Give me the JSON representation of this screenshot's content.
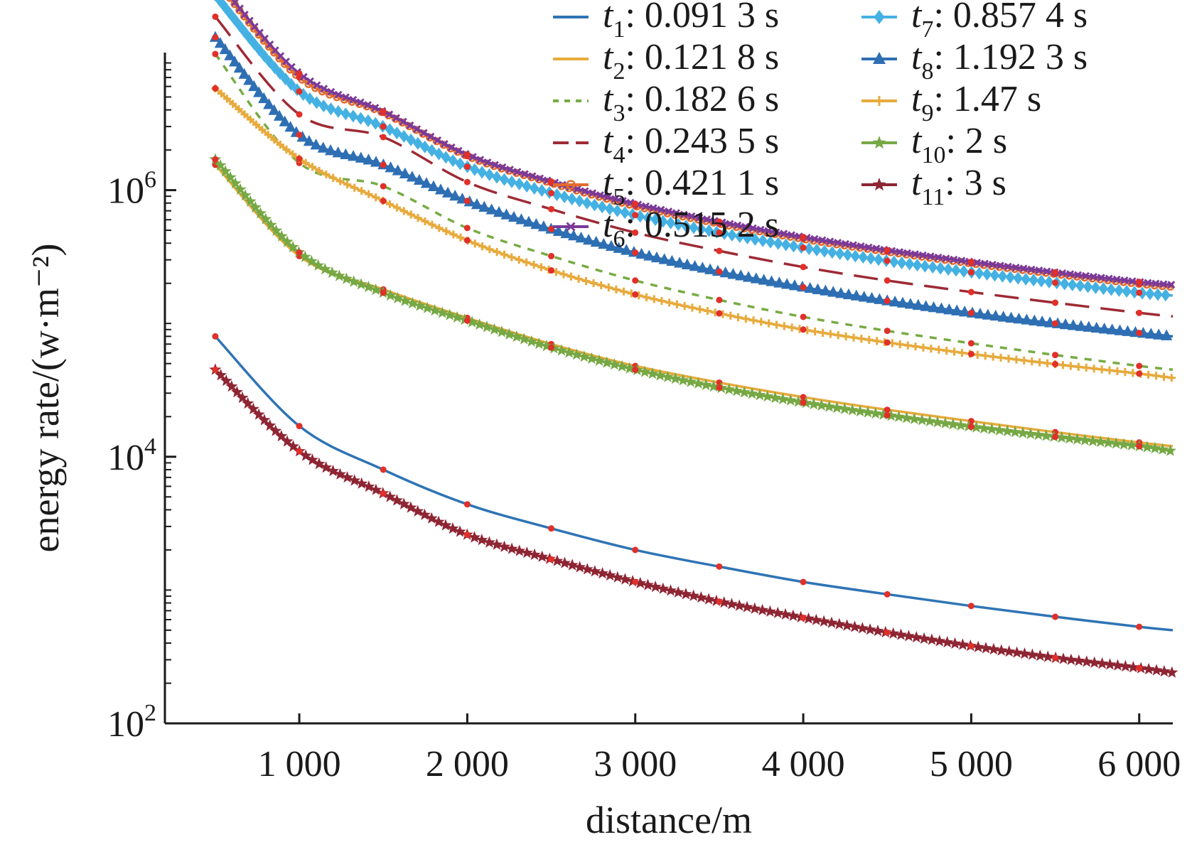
{
  "chart_data": {
    "type": "line",
    "xlabel": "distance/m",
    "ylabel": "energy rate/(w·m⁻²)",
    "xlim": [
      200,
      6200
    ],
    "ylim": [
      100,
      10000000
    ],
    "y_scale": "log",
    "legend_position": "top-right",
    "x_ticks": [
      {
        "value": 1000,
        "label": "1 000"
      },
      {
        "value": 2000,
        "label": "2 000"
      },
      {
        "value": 3000,
        "label": "3 000"
      },
      {
        "value": 4000,
        "label": "4 000"
      },
      {
        "value": 5000,
        "label": "5 000"
      },
      {
        "value": 6000,
        "label": "6 000"
      }
    ],
    "y_ticks": [
      {
        "value": 100,
        "base": "10",
        "exp": "2"
      },
      {
        "value": 10000,
        "base": "10",
        "exp": "4"
      },
      {
        "value": 1000000,
        "base": "10",
        "exp": "6"
      }
    ],
    "x": [
      500,
      1000,
      1500,
      2000,
      2500,
      3000,
      3500,
      4000,
      4500,
      5000,
      5500,
      6000,
      6200
    ],
    "series": [
      {
        "name": "t",
        "sub": "1",
        "time": ": 0.091 3 s",
        "color": "#2f74b5",
        "dash": "",
        "marker": "none",
        "values": [
          80000,
          17000,
          8000,
          4400,
          2900,
          2000,
          1500,
          1150,
          930,
          760,
          630,
          530,
          500
        ]
      },
      {
        "name": "t",
        "sub": "2",
        "time": ": 0.121 8 s",
        "color": "#e7aa3c",
        "dash": "",
        "marker": "none",
        "values": [
          1550000,
          320000,
          180000,
          110000,
          70000,
          48000,
          36000,
          28000,
          22500,
          18500,
          15300,
          12800,
          12000
        ]
      },
      {
        "name": "t",
        "sub": "3",
        "time": ": 0.182 6 s",
        "color": "#77ab43",
        "dash": "10,10",
        "marker": "none",
        "values": [
          10500000,
          1600000,
          1070000,
          520000,
          320000,
          210000,
          150000,
          112000,
          88000,
          71000,
          58000,
          48000,
          45000
        ]
      },
      {
        "name": "t",
        "sub": "4",
        "time": ": 0.243 5 s",
        "color": "#9e2a35",
        "dash": "34,16",
        "marker": "none",
        "values": [
          20000000,
          3700000,
          2500000,
          1150000,
          720000,
          480000,
          350000,
          265000,
          210000,
          172000,
          143000,
          120000,
          113000
        ]
      },
      {
        "name": "t",
        "sub": "5",
        "time": ": 0.421 1 s",
        "color": "#e36c2e",
        "dash": "",
        "marker": "circle",
        "values": [
          38000000,
          7000000,
          3800000,
          1800000,
          1130000,
          760000,
          560000,
          430000,
          345000,
          282000,
          235000,
          198000,
          188000
        ]
      },
      {
        "name": "t",
        "sub": "6",
        "time": ": 0.515 2 s",
        "color": "#7a3a9a",
        "dash": "",
        "marker": "x",
        "values": [
          39000000,
          7500000,
          3900000,
          1850000,
          1160000,
          790000,
          580000,
          445000,
          355000,
          290000,
          242000,
          205000,
          195000
        ]
      },
      {
        "name": "t",
        "sub": "7",
        "time": ": 0.857 4 s",
        "color": "#45b1e3",
        "dash": "",
        "marker": "diamond",
        "values": [
          29000000,
          5500000,
          3000000,
          1500000,
          950000,
          650000,
          480000,
          370000,
          295000,
          242000,
          202000,
          170000,
          162000
        ]
      },
      {
        "name": "t",
        "sub": "8",
        "time": ": 1.192 3 s",
        "color": "#2e6fb4",
        "dash": "",
        "marker": "triangle",
        "values": [
          14000000,
          2600000,
          1550000,
          830000,
          510000,
          340000,
          245000,
          187000,
          148000,
          120000,
          100000,
          85000,
          80000
        ]
      },
      {
        "name": "t",
        "sub": "9",
        "time": ": 1.47 s",
        "color": "#e7aa3c",
        "dash": "",
        "marker": "plus",
        "values": [
          5800000,
          1720000,
          830000,
          420000,
          250000,
          165000,
          119000,
          90000,
          72000,
          59000,
          49500,
          42000,
          39000
        ]
      },
      {
        "name": "t",
        "sub": "10",
        "time": ": 2 s",
        "color": "#76a844",
        "dash": "",
        "marker": "star",
        "values": [
          1700000,
          340000,
          170000,
          105000,
          66000,
          45000,
          33000,
          25500,
          20500,
          16800,
          14100,
          12000,
          11000
        ]
      },
      {
        "name": "t",
        "sub": "11",
        "time": ": 3 s",
        "color": "#8e2533",
        "dash": "",
        "marker": "star",
        "values": [
          45000,
          11000,
          5300,
          2600,
          1700,
          1150,
          820,
          620,
          480,
          380,
          310,
          260,
          240
        ]
      }
    ]
  }
}
